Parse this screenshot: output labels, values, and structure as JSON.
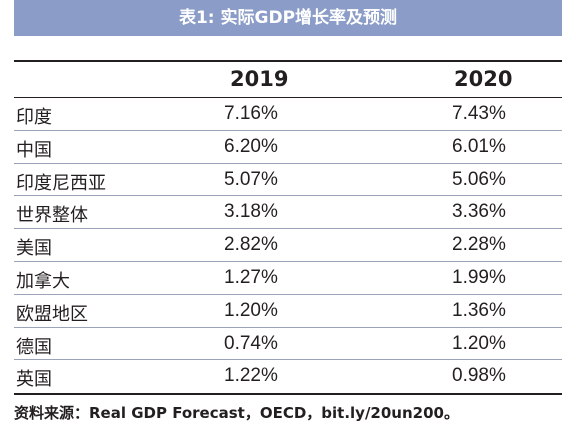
{
  "title": "表1: 实际GDP增长率及预测",
  "columns": [
    "2019",
    "2020"
  ],
  "rows": [
    {
      "name": "印度",
      "y2019": "7.16%",
      "y2020": "7.43%"
    },
    {
      "name": "中国",
      "y2019": "6.20%",
      "y2020": "6.01%"
    },
    {
      "name": "印度尼西亚",
      "y2019": "5.07%",
      "y2020": "5.06%"
    },
    {
      "name": "世界整体",
      "y2019": "3.18%",
      "y2020": "3.36%"
    },
    {
      "name": "美国",
      "y2019": "2.82%",
      "y2020": "2.28%"
    },
    {
      "name": "加拿大",
      "y2019": "1.27%",
      "y2020": "1.99%"
    },
    {
      "name": "欧盟地区",
      "y2019": "1.20%",
      "y2020": "1.36%"
    },
    {
      "name": "德国",
      "y2019": "0.74%",
      "y2020": "1.20%"
    },
    {
      "name": "英国",
      "y2019": "1.22%",
      "y2020": "0.98%"
    }
  ],
  "source": "资料来源：Real GDP Forecast，OECD，bit.ly/20un200。",
  "colors": {
    "title_bar": "#8a9cc7",
    "text": "#231f20"
  }
}
